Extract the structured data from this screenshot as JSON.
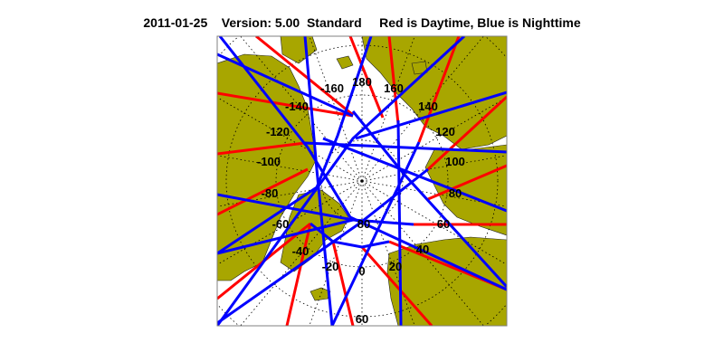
{
  "header": {
    "date": "2011-01-25",
    "version": "Version: 5.00",
    "mode": "Standard",
    "legend_text": "Red is Daytime, Blue is Nighttime"
  },
  "map": {
    "projection": "north polar stereographic",
    "longitude_labels": [
      "180",
      "160",
      "140",
      "120",
      "100",
      "80",
      "60",
      "40",
      "20",
      "0",
      "-20",
      "-40",
      "-60",
      "-80",
      "-100",
      "-120",
      "-140",
      "-160"
    ],
    "latitude_labels": [
      "80",
      "60"
    ],
    "colors": {
      "land": "#a8a600",
      "ocean": "#ffffff",
      "daytime": "#ff0000",
      "nighttime": "#0000ff",
      "grid": "#000000",
      "frame": "#808080"
    }
  }
}
